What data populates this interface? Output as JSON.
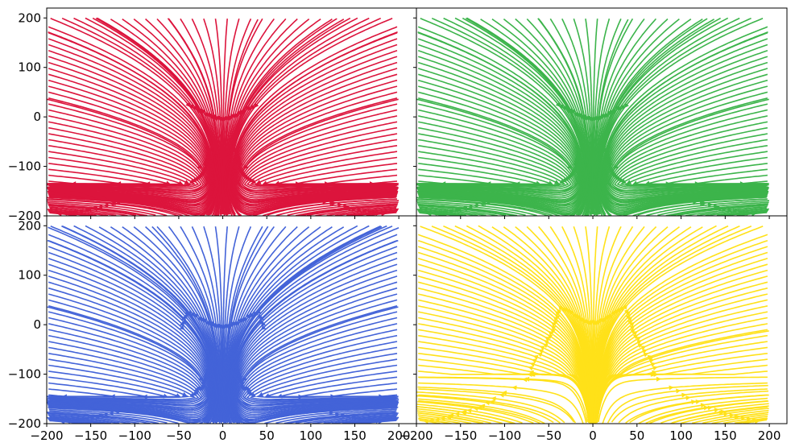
{
  "chart_data": [
    {
      "type": "streamplot",
      "panel": "top-left",
      "color": "#dc143c",
      "xlim": [
        -200,
        220
      ],
      "ylim": [
        -200,
        220
      ],
      "grid": false,
      "features": {
        "sink_vertical_line_x": 0,
        "horizontal_line_y": -135,
        "flow_right_of_center": "toward x=0",
        "flow_left_of_center": "toward x=0",
        "bottom_band_flow": "outward from x=0"
      },
      "xticks": [],
      "yticks": [
        "200",
        "100",
        "0",
        "−100",
        "−200"
      ]
    },
    {
      "type": "streamplot",
      "panel": "top-right",
      "color": "#3cb44b",
      "xlim": [
        -200,
        220
      ],
      "ylim": [
        -200,
        220
      ],
      "grid": false,
      "features": {
        "sink_vertical_line_x": 0,
        "horizontal_line_y": -135,
        "flow_right_of_center": "toward x=0",
        "flow_left_of_center": "toward x=0",
        "bottom_band_flow": "outward from x=0"
      },
      "xticks": [],
      "yticks": []
    },
    {
      "type": "streamplot",
      "panel": "bottom-left",
      "color": "#4363d8",
      "xlim": [
        -200,
        220
      ],
      "ylim": [
        -200,
        220
      ],
      "grid": false,
      "features": {
        "sink_vertical_line_x": 0,
        "horizontal_line_y": -145,
        "flow_right_of_center": "toward x=0",
        "flow_left_of_center": "toward x=0",
        "bottom_band_flow": "outward from x=0"
      },
      "xticks": [
        "−200",
        "−150",
        "−100",
        "−50",
        "0",
        "50",
        "100",
        "150",
        "200"
      ],
      "yticks": [
        "200",
        "100",
        "0",
        "−100",
        "−200"
      ]
    },
    {
      "type": "streamplot",
      "panel": "bottom-right",
      "color": "#ffe119",
      "xlim": [
        -200,
        220
      ],
      "ylim": [
        -200,
        220
      ],
      "grid": false,
      "features": {
        "source_vertical_line_x": 0,
        "horizontal_line_y": -100,
        "flow_right_of_center": "away from x=0",
        "flow_left_of_center": "away from x=0",
        "bottom_band_flow": "outward from x=0"
      },
      "xticks": [
        "−200",
        "−150",
        "−100",
        "−50",
        "0",
        "50",
        "100",
        "150",
        "200"
      ],
      "yticks": []
    }
  ]
}
